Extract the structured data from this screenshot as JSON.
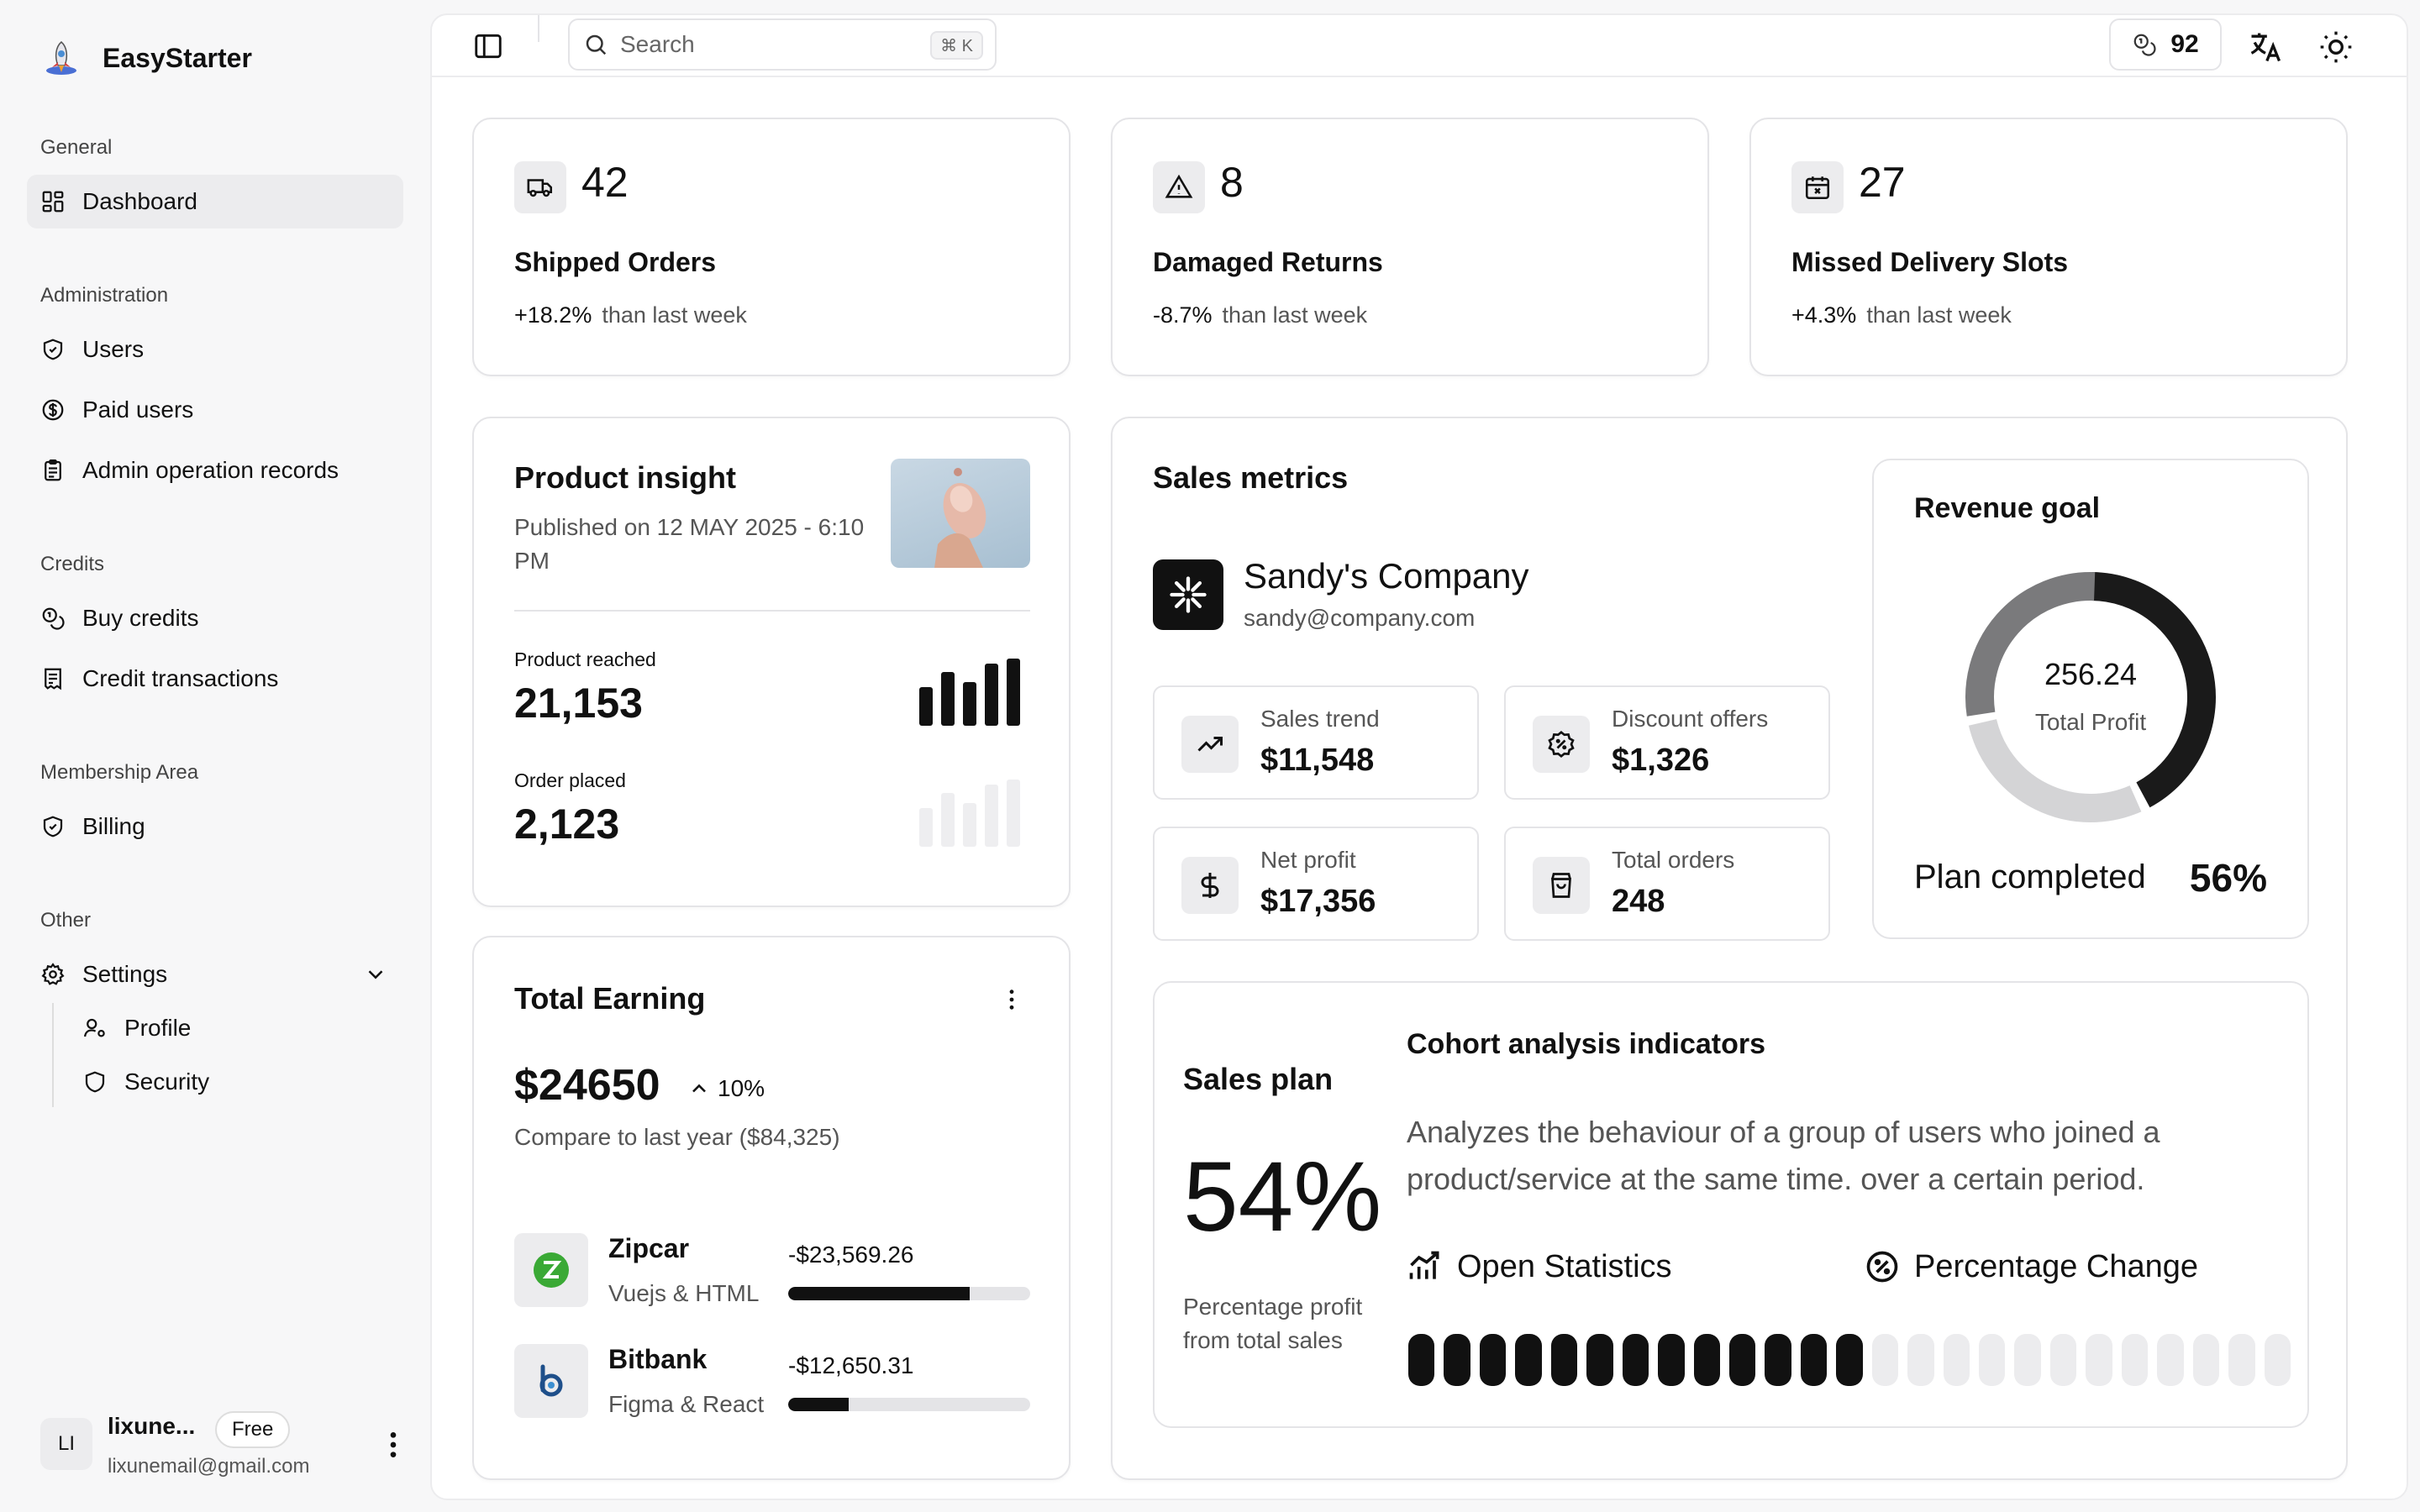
{
  "brand": {
    "name": "EasyStarter"
  },
  "sidebar": {
    "groups": [
      {
        "title": "General",
        "items": [
          {
            "label": "Dashboard",
            "icon": "dashboard-icon"
          }
        ]
      },
      {
        "title": "Administration",
        "items": [
          {
            "label": "Users",
            "icon": "shield-check-icon"
          },
          {
            "label": "Paid users",
            "icon": "dollar-circle-icon"
          },
          {
            "label": "Admin operation records",
            "icon": "clipboard-icon"
          }
        ]
      },
      {
        "title": "Credits",
        "items": [
          {
            "label": "Buy credits",
            "icon": "coins-icon"
          },
          {
            "label": "Credit transactions",
            "icon": "receipt-icon"
          }
        ]
      },
      {
        "title": "Membership Area",
        "items": [
          {
            "label": "Billing",
            "icon": "shield-check-icon"
          }
        ]
      },
      {
        "title": "Other",
        "items": [
          {
            "label": "Settings",
            "icon": "gear-icon"
          },
          {
            "label": "Profile",
            "icon": "user-cog-icon"
          },
          {
            "label": "Security",
            "icon": "shield-icon"
          }
        ]
      }
    ],
    "user": {
      "initials": "LI",
      "name": "lixune...",
      "plan": "Free",
      "email": "lixunemail@gmail.com"
    }
  },
  "topbar": {
    "search_placeholder": "Search",
    "shortcut": "⌘ K",
    "credits": "92"
  },
  "stats": [
    {
      "value": "42",
      "title": "Shipped Orders",
      "change": "+18.2%",
      "suffix": "than last week",
      "icon": "truck-icon"
    },
    {
      "value": "8",
      "title": "Damaged Returns",
      "change": "-8.7%",
      "suffix": "than last week",
      "icon": "warning-icon"
    },
    {
      "value": "27",
      "title": "Missed Delivery Slots",
      "change": "+4.3%",
      "suffix": "than last week",
      "icon": "calendar-x-icon"
    }
  ],
  "product_insight": {
    "title": "Product insight",
    "published": "Published on 12 MAY 2025 - 6:10 PM",
    "reached_label": "Product reached",
    "reached_value": "21,153",
    "order_label": "Order placed",
    "order_value": "2,123"
  },
  "total_earning": {
    "title": "Total Earning",
    "amount": "$24650",
    "change": "10%",
    "compare": "Compare to last year ($84,325)",
    "items": [
      {
        "name": "Zipcar",
        "sub": "Vuejs & HTML",
        "amount": "-$23,569.26",
        "progress": 0.75
      },
      {
        "name": "Bitbank",
        "sub": "Figma & React",
        "amount": "-$12,650.31",
        "progress": 0.25
      }
    ]
  },
  "sales_metrics": {
    "title": "Sales metrics",
    "company": "Sandy's Company",
    "email": "sandy@company.com",
    "metrics": [
      {
        "label": "Sales trend",
        "value": "$11,548",
        "icon": "trending-up-icon"
      },
      {
        "label": "Discount offers",
        "value": "$1,326",
        "icon": "discount-badge-icon"
      },
      {
        "label": "Net profit",
        "value": "$17,356",
        "icon": "dollar-icon"
      },
      {
        "label": "Total orders",
        "value": "248",
        "icon": "shopping-bag-icon"
      }
    ]
  },
  "revenue_goal": {
    "title": "Revenue goal",
    "center_value": "256.24",
    "center_label": "Total Profit",
    "plan_label": "Plan completed",
    "plan_percent": "56%",
    "segments": [
      {
        "fraction": 0.42,
        "color": "#1a1a1a"
      },
      {
        "fraction": 0.28,
        "color": "#d4d4d6"
      },
      {
        "fraction": 0.28,
        "color": "#7a7a7c"
      }
    ]
  },
  "sales_plan": {
    "title": "Sales plan",
    "percent": "54%",
    "caption_line1": "Percentage profit",
    "caption_line2": "from total sales",
    "cohort_title": "Cohort analysis indicators",
    "cohort_desc_line1": "Analyzes the behaviour of a group of users who joined a",
    "cohort_desc_line2": "product/service at the same time. over a certain period.",
    "open_stats": "Open Statistics",
    "pct_change": "Percentage Change",
    "filled_pills": 13,
    "total_pills": 25
  },
  "colors": {
    "accent": "#111111",
    "muted_bar": "#e4e4e7",
    "zipcar_green": "#3aa935",
    "bitbank_blue": "#1e4f8a"
  }
}
